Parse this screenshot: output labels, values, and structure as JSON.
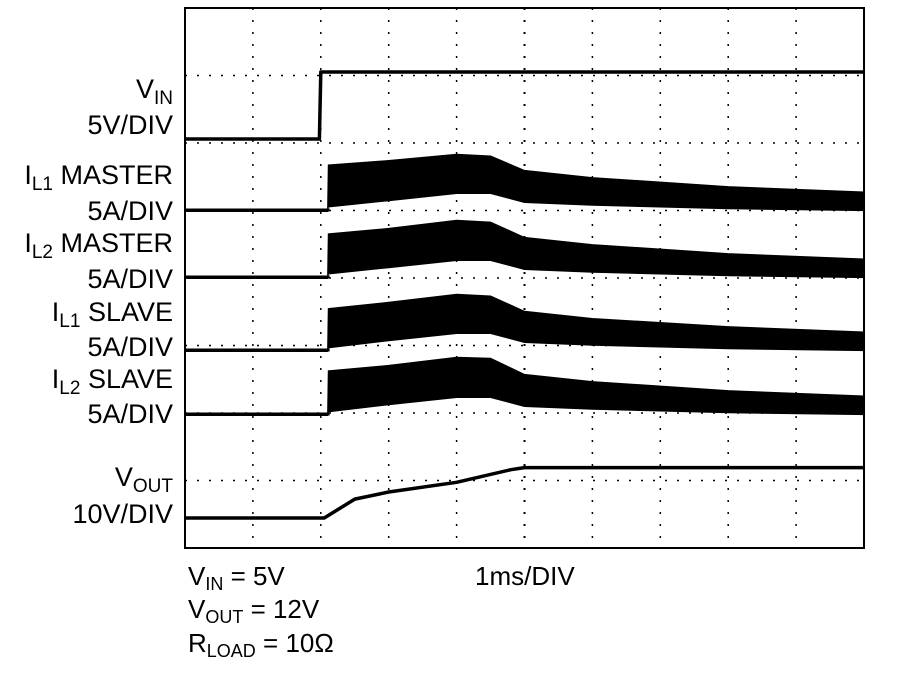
{
  "chart_data": {
    "type": "line",
    "title": "",
    "x_units": "ms",
    "timebase_label": "1ms/DIV",
    "grid": true,
    "grid_divisions": {
      "x": 10,
      "y": 8
    },
    "xlim": [
      -2,
      8
    ],
    "series": [
      {
        "label_main": "V",
        "label_sub": "IN",
        "label_suffix": "",
        "scale": "5V/DIV",
        "x": [
          -2,
          -0.02,
          0,
          8
        ],
        "y": [
          0,
          0,
          5,
          5
        ]
      },
      {
        "label_main": "I",
        "label_sub": "L1",
        "label_suffix": " MASTER",
        "scale": "5A/DIV",
        "x": [
          -2,
          0.1,
          0.11,
          1.0,
          2.0,
          2.5,
          3.0,
          4.0,
          6.0,
          8.0
        ],
        "y_high": [
          0,
          0,
          5.0,
          5.5,
          6.2,
          6.0,
          4.4,
          3.6,
          2.6,
          2.0
        ],
        "y_low": [
          0,
          0,
          0.5,
          1.2,
          2.0,
          2.0,
          1.0,
          0.7,
          0.3,
          0.1
        ]
      },
      {
        "label_main": "I",
        "label_sub": "L2",
        "label_suffix": " MASTER",
        "scale": "5A/DIV",
        "x": [
          -2,
          0.1,
          0.11,
          1.0,
          2.0,
          2.5,
          3.0,
          4.0,
          6.0,
          8.0
        ],
        "y_high": [
          0,
          0,
          4.8,
          5.4,
          6.3,
          6.1,
          4.4,
          3.6,
          2.6,
          2.0
        ],
        "y_low": [
          0,
          0,
          0.5,
          1.2,
          2.0,
          2.0,
          1.0,
          0.7,
          0.3,
          0.1
        ]
      },
      {
        "label_main": "I",
        "label_sub": "L1",
        "label_suffix": " SLAVE",
        "scale": "5A/DIV",
        "x": [
          -2,
          0.1,
          0.11,
          1.0,
          2.0,
          2.5,
          3.0,
          4.0,
          6.0,
          8.0
        ],
        "y_high": [
          0,
          0,
          4.6,
          5.3,
          6.2,
          6.0,
          4.3,
          3.5,
          2.6,
          2.0
        ],
        "y_low": [
          0,
          0,
          0.4,
          1.2,
          2.0,
          2.0,
          1.0,
          0.7,
          0.3,
          0.1
        ]
      },
      {
        "label_main": "I",
        "label_sub": "L2",
        "label_suffix": " SLAVE",
        "scale": "5A/DIV",
        "x": [
          -2,
          0.1,
          0.11,
          1.0,
          2.0,
          2.5,
          3.0,
          4.0,
          6.0,
          8.0
        ],
        "y_high": [
          0,
          0,
          4.8,
          5.4,
          6.3,
          6.2,
          4.4,
          3.6,
          2.6,
          2.0
        ],
        "y_low": [
          0,
          0,
          0.4,
          1.2,
          2.0,
          2.0,
          1.0,
          0.7,
          0.3,
          0.1
        ]
      },
      {
        "label_main": "V",
        "label_sub": "OUT",
        "label_suffix": "",
        "scale": "10V/DIV",
        "x": [
          -2,
          0.05,
          0.5,
          1.0,
          2.0,
          2.8,
          3.0,
          8.0
        ],
        "y": [
          0,
          0,
          4.5,
          6.2,
          8.5,
          11.5,
          12,
          12
        ]
      }
    ],
    "conditions": [
      {
        "main": "V",
        "sub": "IN",
        "rest": " = 5V"
      },
      {
        "main": "V",
        "sub": "OUT",
        "rest": " = 12V"
      },
      {
        "main": "R",
        "sub": "LOAD",
        "rest": " = 10Ω"
      }
    ]
  }
}
